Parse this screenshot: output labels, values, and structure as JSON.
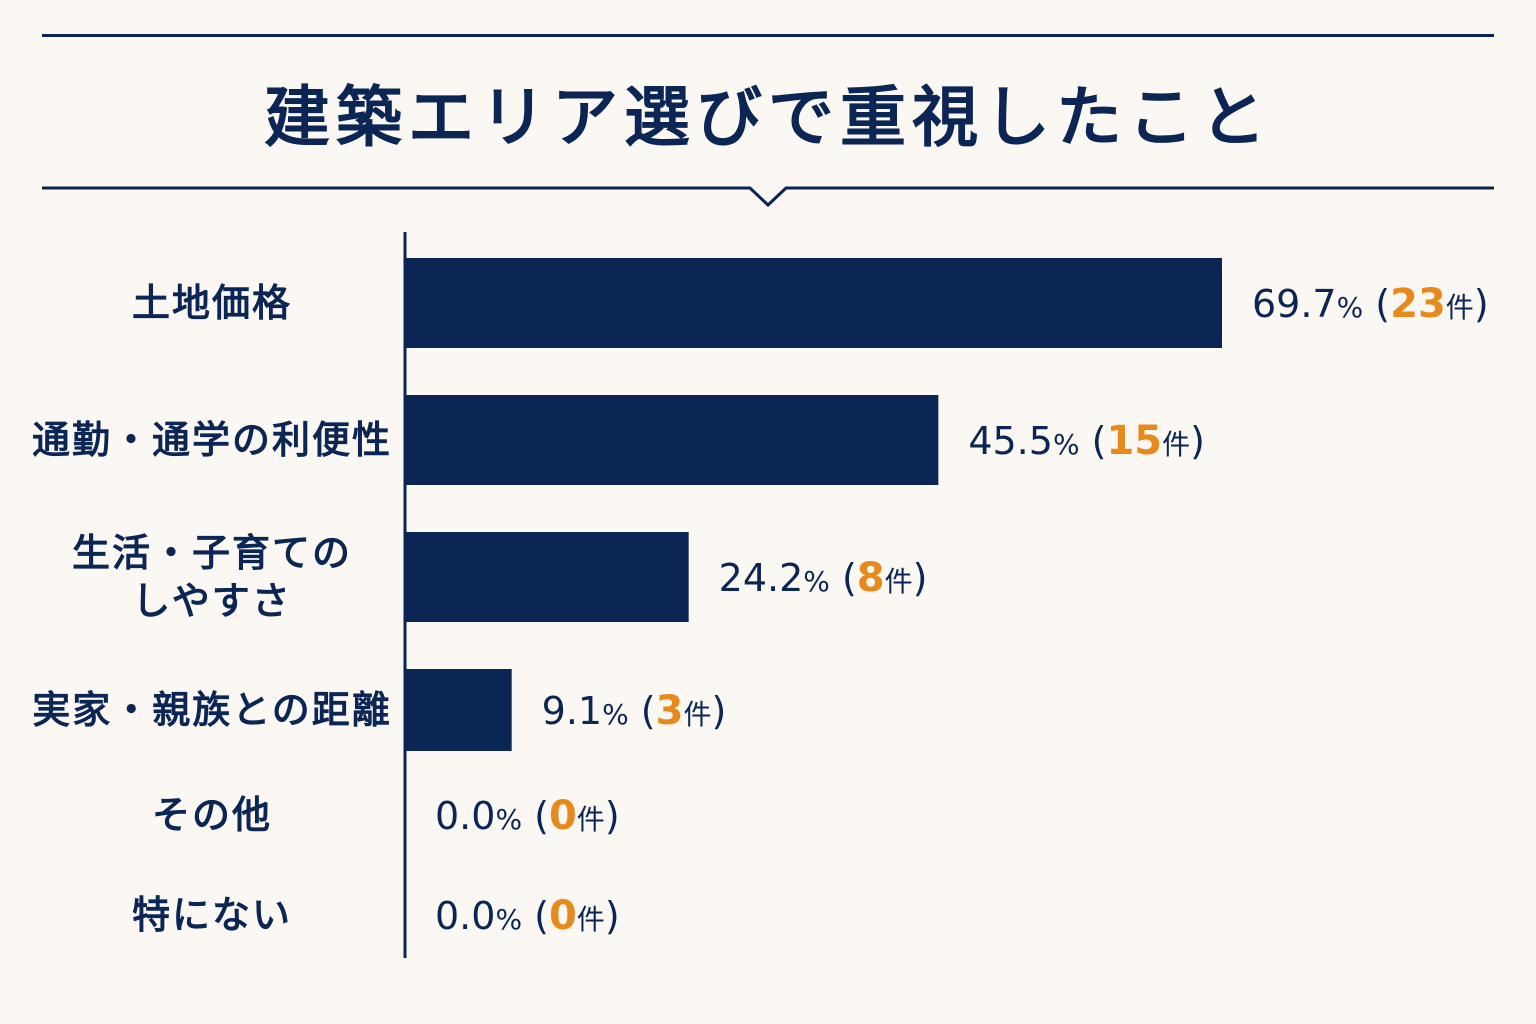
{
  "chart_data": {
    "type": "bar",
    "orientation": "horizontal",
    "title": "建築エリア選びで重視したこと",
    "categories": [
      [
        "土地価格"
      ],
      [
        "通勤・通学の利便性"
      ],
      [
        "生活・子育ての",
        "しやすさ"
      ],
      [
        "実家・親族との距離"
      ],
      [
        "その他"
      ],
      [
        "特にない"
      ]
    ],
    "values": [
      69.7,
      45.5,
      24.2,
      9.1,
      0.0,
      0.0
    ],
    "value_labels": [
      "69.7",
      "45.5",
      "24.2",
      "9.1",
      "0.0",
      "0.0"
    ],
    "counts": [
      "23",
      "15",
      "8",
      "3",
      "0",
      "0"
    ],
    "percent_sign": "%",
    "paren_open": "(",
    "paren_close": ")",
    "count_unit": "件",
    "xlim": [
      0,
      69.7
    ],
    "grid": false,
    "bar_color": "#0b2654",
    "count_color": "#e8891d"
  }
}
